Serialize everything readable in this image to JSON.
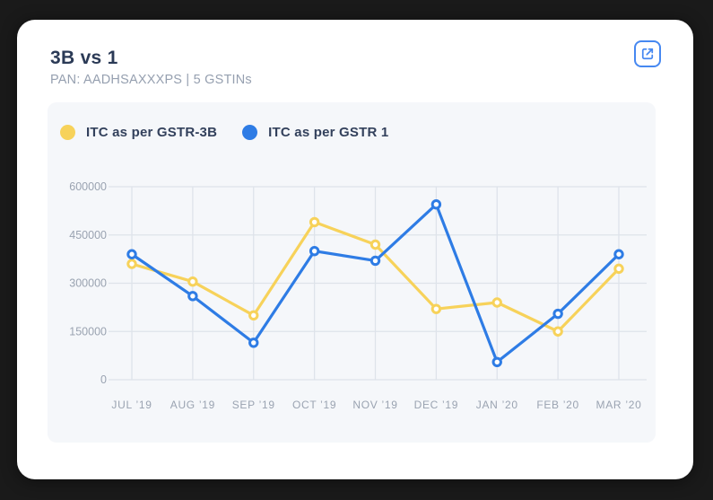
{
  "window": {
    "background_color": "#1a1a1a"
  },
  "card": {
    "title": "3B vs 1",
    "subtitle": "PAN: AADHSAXXXPS | 5 GSTINs",
    "action": {
      "icon": "external-link",
      "color": "#4688f1"
    }
  },
  "chart_data": {
    "type": "line",
    "title": "3B vs 1",
    "categories": [
      "JUL ’19",
      "AUG ’19",
      "SEP ’19",
      "OCT ’19",
      "NOV ’19",
      "DEC ’19",
      "JAN ’20",
      "FEB ’20",
      "MAR ’20"
    ],
    "series": [
      {
        "name": "ITC as per GSTR-3B",
        "color": "#f7d25a",
        "values": [
          360000,
          305000,
          200000,
          490000,
          420000,
          220000,
          240000,
          150000,
          345000
        ]
      },
      {
        "name": "ITC as per GSTR 1",
        "color": "#2e7ce5",
        "values": [
          390000,
          260000,
          115000,
          400000,
          370000,
          545000,
          55000,
          205000,
          390000
        ]
      }
    ],
    "xlabel": "",
    "ylabel": "",
    "ylim": [
      0,
      600000
    ],
    "yticks": [
      0,
      150000,
      300000,
      450000,
      600000
    ],
    "grid": true,
    "legend_position": "top-left",
    "marker": "open-circle",
    "panel_bg": "#f5f7fa",
    "grid_color": "#dee3ea",
    "tick_color": "#9aa3b1"
  }
}
